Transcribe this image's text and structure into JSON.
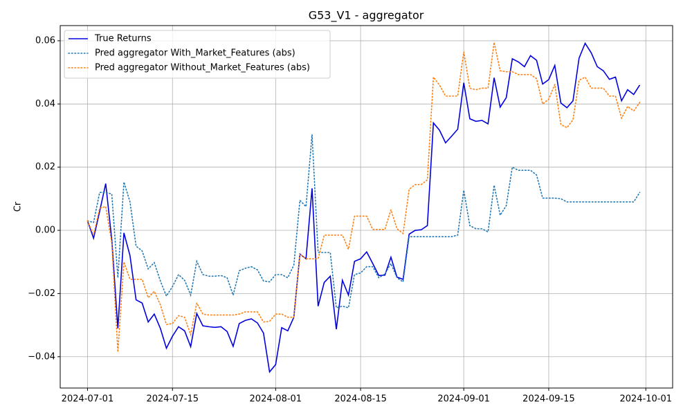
{
  "chart_data": {
    "type": "line",
    "title": "G53_V1 - aggregator",
    "ylabel": "Cr",
    "x": [
      "2024-07-01",
      "2024-07-02",
      "2024-07-03",
      "2024-07-04",
      "2024-07-05",
      "2024-07-06",
      "2024-07-07",
      "2024-07-08",
      "2024-07-09",
      "2024-07-10",
      "2024-07-11",
      "2024-07-12",
      "2024-07-13",
      "2024-07-14",
      "2024-07-15",
      "2024-07-16",
      "2024-07-17",
      "2024-07-18",
      "2024-07-19",
      "2024-07-20",
      "2024-07-21",
      "2024-07-22",
      "2024-07-23",
      "2024-07-24",
      "2024-07-25",
      "2024-07-26",
      "2024-07-27",
      "2024-07-28",
      "2024-07-29",
      "2024-07-30",
      "2024-07-31",
      "2024-08-01",
      "2024-08-02",
      "2024-08-03",
      "2024-08-04",
      "2024-08-05",
      "2024-08-06",
      "2024-08-07",
      "2024-08-08",
      "2024-08-09",
      "2024-08-10",
      "2024-08-11",
      "2024-08-12",
      "2024-08-13",
      "2024-08-14",
      "2024-08-15",
      "2024-08-16",
      "2024-08-17",
      "2024-08-18",
      "2024-08-19",
      "2024-08-20",
      "2024-08-21",
      "2024-08-22",
      "2024-08-23",
      "2024-08-24",
      "2024-08-25",
      "2024-08-26",
      "2024-08-27",
      "2024-08-28",
      "2024-08-29",
      "2024-08-30",
      "2024-08-31",
      "2024-09-01",
      "2024-09-02",
      "2024-09-03",
      "2024-09-04",
      "2024-09-05",
      "2024-09-06",
      "2024-09-07",
      "2024-09-08",
      "2024-09-09",
      "2024-09-10",
      "2024-09-11",
      "2024-09-12",
      "2024-09-13",
      "2024-09-14",
      "2024-09-15",
      "2024-09-16",
      "2024-09-17",
      "2024-09-18",
      "2024-09-19",
      "2024-09-20",
      "2024-09-21",
      "2024-09-22",
      "2024-09-23",
      "2024-09-24",
      "2024-09-25",
      "2024-09-26",
      "2024-09-27",
      "2024-09-28",
      "2024-09-29",
      "2024-09-30"
    ],
    "series": [
      {
        "name": "True Returns",
        "color": "#0000dd",
        "style": "solid",
        "values": [
          0.003,
          -0.0025,
          0.006,
          0.0148,
          -0.003,
          -0.031,
          -0.0008,
          -0.008,
          -0.022,
          -0.023,
          -0.029,
          -0.0265,
          -0.031,
          -0.0373,
          -0.0335,
          -0.0305,
          -0.0318,
          -0.0368,
          -0.0263,
          -0.0302,
          -0.0305,
          -0.0307,
          -0.0305,
          -0.032,
          -0.0367,
          -0.0295,
          -0.0285,
          -0.028,
          -0.0293,
          -0.0325,
          -0.0448,
          -0.0425,
          -0.0308,
          -0.0318,
          -0.0275,
          -0.0075,
          -0.009,
          0.0133,
          -0.024,
          -0.0165,
          -0.0145,
          -0.0313,
          -0.0158,
          -0.0205,
          -0.0098,
          -0.009,
          -0.0068,
          -0.0105,
          -0.0143,
          -0.0142,
          -0.0085,
          -0.0148,
          -0.0155,
          -0.0012,
          0.0,
          0.0002,
          0.0015,
          0.034,
          0.0317,
          0.0277,
          0.0298,
          0.032,
          0.0467,
          0.0353,
          0.0345,
          0.0348,
          0.0337,
          0.0483,
          0.039,
          0.042,
          0.0543,
          0.0533,
          0.0518,
          0.0553,
          0.0538,
          0.0463,
          0.0477,
          0.0522,
          0.0403,
          0.0388,
          0.041,
          0.0545,
          0.0592,
          0.0562,
          0.0518,
          0.0505,
          0.0478,
          0.0485,
          0.041,
          0.0445,
          0.043,
          0.046
        ]
      },
      {
        "name": "Pred aggregator With_Market_Features (abs)",
        "color": "#1f77b4",
        "style": "dotted",
        "values": [
          0.003,
          0.0025,
          0.012,
          0.012,
          0.0115,
          -0.015,
          0.0153,
          0.009,
          -0.005,
          -0.0065,
          -0.0122,
          -0.0102,
          -0.016,
          -0.0208,
          -0.0178,
          -0.014,
          -0.0158,
          -0.0205,
          -0.0098,
          -0.014,
          -0.0145,
          -0.0145,
          -0.0143,
          -0.015,
          -0.0205,
          -0.0128,
          -0.012,
          -0.0115,
          -0.0125,
          -0.016,
          -0.0163,
          -0.014,
          -0.014,
          -0.015,
          -0.011,
          0.0095,
          0.0075,
          0.0303,
          -0.007,
          -0.007,
          -0.007,
          -0.0245,
          -0.024,
          -0.0245,
          -0.014,
          -0.0135,
          -0.0115,
          -0.0115,
          -0.015,
          -0.0138,
          -0.0105,
          -0.015,
          -0.0163,
          -0.002,
          -0.002,
          -0.002,
          -0.002,
          -0.002,
          -0.002,
          -0.002,
          -0.002,
          -0.0015,
          0.0127,
          0.0015,
          0.0005,
          0.0005,
          -0.0005,
          0.0143,
          0.0048,
          0.0078,
          0.02,
          0.019,
          0.019,
          0.019,
          0.0175,
          0.0102,
          0.0102,
          0.0102,
          0.01,
          0.009,
          0.009,
          0.009,
          0.009,
          0.009,
          0.009,
          0.009,
          0.009,
          0.009,
          0.009,
          0.009,
          0.009,
          0.012
        ]
      },
      {
        "name": "Pred aggregator Without_Market_Features (abs)",
        "color": "#ff7f0e",
        "style": "dotted",
        "values": [
          0.003,
          -0.0015,
          0.007,
          0.0075,
          -0.004,
          -0.0385,
          -0.01,
          -0.0155,
          -0.0155,
          -0.0155,
          -0.0213,
          -0.0193,
          -0.0235,
          -0.0298,
          -0.0295,
          -0.027,
          -0.0275,
          -0.033,
          -0.023,
          -0.0265,
          -0.0268,
          -0.0268,
          -0.0268,
          -0.0268,
          -0.0268,
          -0.0265,
          -0.0258,
          -0.0258,
          -0.0258,
          -0.029,
          -0.0288,
          -0.0265,
          -0.0265,
          -0.0275,
          -0.0275,
          -0.0075,
          -0.009,
          -0.009,
          -0.009,
          -0.0015,
          -0.0015,
          -0.0015,
          -0.0015,
          -0.006,
          0.0045,
          0.0045,
          0.0045,
          0.0003,
          0.0003,
          0.0003,
          0.0065,
          0.0005,
          -0.001,
          0.013,
          0.0145,
          0.0145,
          0.016,
          0.0485,
          0.046,
          0.0425,
          0.0425,
          0.0425,
          0.0565,
          0.045,
          0.0445,
          0.045,
          0.045,
          0.0595,
          0.0505,
          0.0502,
          0.0502,
          0.0493,
          0.0493,
          0.0493,
          0.048,
          0.04,
          0.0415,
          0.0462,
          0.0335,
          0.0325,
          0.035,
          0.0475,
          0.0485,
          0.045,
          0.045,
          0.045,
          0.0425,
          0.0425,
          0.0355,
          0.0392,
          0.0378,
          0.0405
        ]
      }
    ],
    "xlim": [
      "2024-06-26T12:00:00Z",
      "2024-10-05T10:00:00Z"
    ],
    "xticks": [
      "2024-07-01",
      "2024-07-15",
      "2024-08-01",
      "2024-08-15",
      "2024-09-01",
      "2024-09-15",
      "2024-10-01"
    ],
    "ylim": [
      -0.0499,
      0.0648
    ],
    "yticks": [
      {
        "value": -0.04,
        "label": "−0.04"
      },
      {
        "value": -0.02,
        "label": "−0.02"
      },
      {
        "value": 0,
        "label": "0.00"
      },
      0.02,
      0.04,
      0.06
    ],
    "grid": true,
    "legend": "upper left"
  }
}
